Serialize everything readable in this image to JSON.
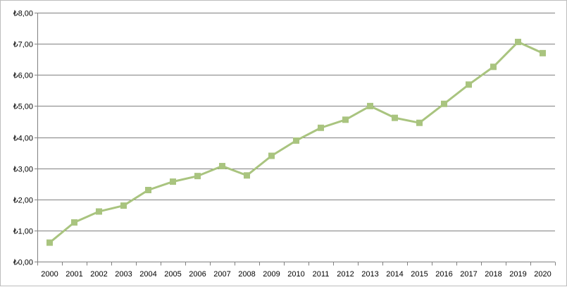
{
  "chart_data": {
    "type": "line",
    "title": "",
    "xlabel": "",
    "ylabel": "",
    "categories": [
      "2000",
      "2001",
      "2002",
      "2003",
      "2004",
      "2005",
      "2006",
      "2007",
      "2008",
      "2009",
      "2010",
      "2011",
      "2012",
      "2013",
      "2014",
      "2015",
      "2016",
      "2017",
      "2018",
      "2019",
      "2020"
    ],
    "series": [
      {
        "values": [
          0.61,
          1.26,
          1.61,
          1.8,
          2.3,
          2.57,
          2.75,
          3.07,
          2.77,
          3.4,
          3.89,
          4.3,
          4.56,
          5.0,
          4.62,
          4.46,
          5.07,
          5.69,
          6.26,
          7.06,
          6.7
        ]
      }
    ],
    "ylim": [
      0,
      8
    ],
    "y_ticks": [
      0,
      1,
      2,
      3,
      4,
      5,
      6,
      7,
      8
    ],
    "y_tick_labels": [
      "₺0,00",
      "₺1,00",
      "₺2,00",
      "₺3,00",
      "₺4,00",
      "₺5,00",
      "₺6,00",
      "₺7,00",
      "₺8,00"
    ],
    "grid": "horizontal",
    "legend": "none",
    "colors": {
      "series": "#a9c47f",
      "marker": "#a9c47f",
      "grid": "#808080"
    }
  }
}
